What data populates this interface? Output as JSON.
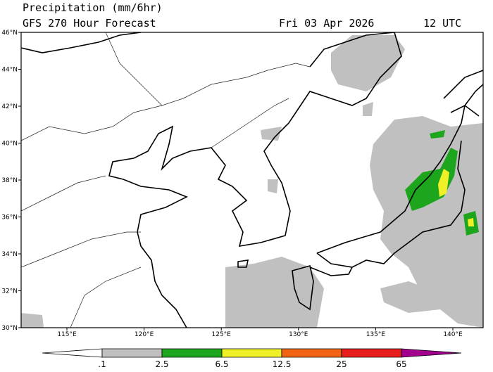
{
  "header": {
    "title": "Precipitation (mm/6hr)",
    "subtitle": "GFS 270 Hour Forecast",
    "date": "Fri 03 Apr 2026",
    "time": "12 UTC"
  },
  "axes": {
    "lat_labels": [
      "46°N",
      "44°N",
      "42°N",
      "40°N",
      "38°N",
      "36°N",
      "34°N",
      "32°N",
      "30°N"
    ],
    "lon_labels": [
      "115°E",
      "120°E",
      "125°E",
      "130°E",
      "135°E",
      "140°E"
    ]
  },
  "legend": {
    "labels": [
      ".1",
      "2.5",
      "6.5",
      "12.5",
      "25",
      "65"
    ],
    "colors": [
      "#ffffff",
      "#c0c0c0",
      "#1ea51e",
      "#f0f028",
      "#f06414",
      "#e61e1e",
      "#a0008c"
    ]
  }
}
